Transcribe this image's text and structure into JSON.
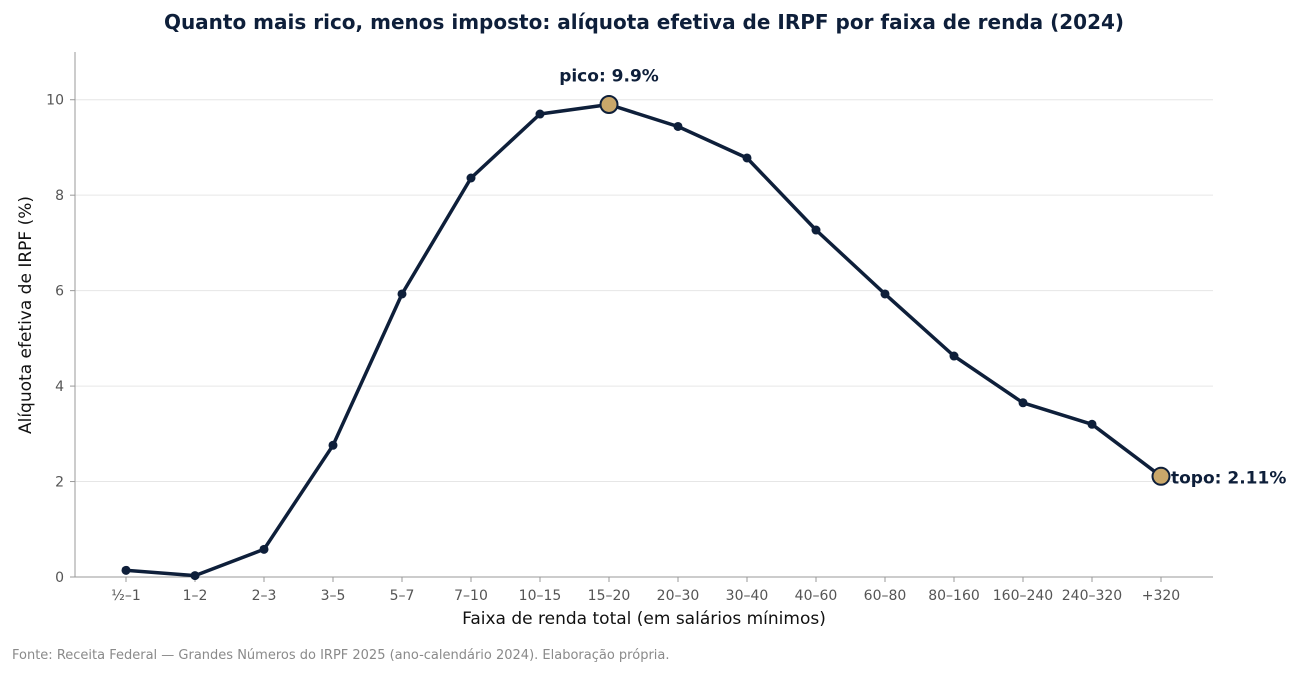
{
  "colors": {
    "line": "#0e1f3a",
    "highlight_fill": "#c9a76a",
    "grid": "#e6e6e6",
    "axis": "#999999",
    "title": "#0e1f3a",
    "source": "#8a8a8a"
  },
  "source_note": "Fonte: Receita Federal — Grandes Números do IRPF 2025 (ano-calendário 2024). Elaboração própria.",
  "chart_data": {
    "type": "line",
    "title": "Quanto mais rico, menos imposto: alíquota efetiva de IRPF por faixa de renda (2024)",
    "xlabel": "Faixa de renda total (em salários mínimos)",
    "ylabel": "Alíquota efetiva de IRPF (%)",
    "categories": [
      "½–1",
      "1–2",
      "2–3",
      "3–5",
      "5–7",
      "7–10",
      "10–15",
      "15–20",
      "20–30",
      "30–40",
      "40–60",
      "60–80",
      "80–160",
      "160–240",
      "240–320",
      "+320"
    ],
    "values": [
      0.14,
      0.03,
      0.58,
      2.76,
      5.93,
      8.36,
      9.7,
      9.9,
      9.44,
      8.78,
      7.27,
      5.93,
      4.63,
      3.65,
      3.2,
      2.11
    ],
    "ylim": [
      0,
      11
    ],
    "yticks": [
      0,
      2,
      4,
      6,
      8,
      10
    ],
    "grid": "horizontal",
    "annotations": [
      {
        "index": 7,
        "text": "pico: 9.9%"
      },
      {
        "index": 15,
        "text": "topo: 2.11%"
      }
    ]
  }
}
